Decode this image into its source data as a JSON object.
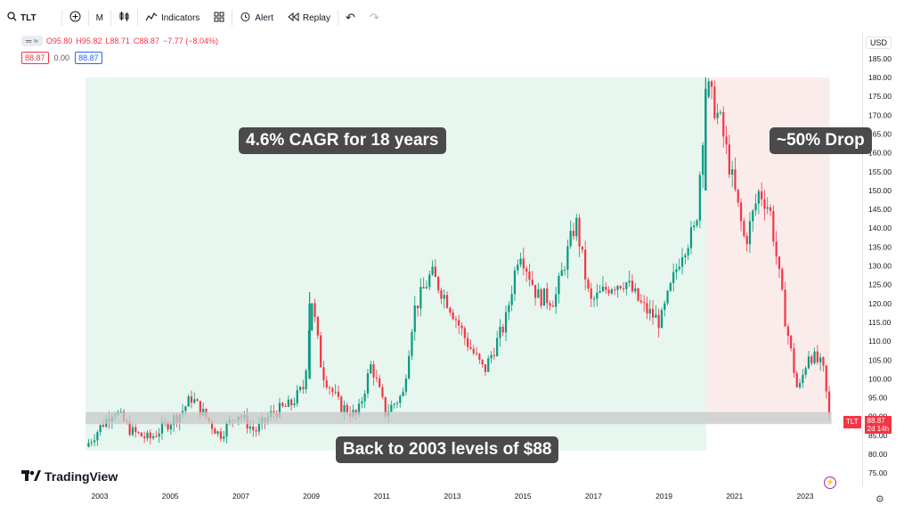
{
  "toolbar": {
    "symbol": "TLT",
    "interval": "M",
    "indicators": "Indicators",
    "alert": "Alert",
    "replay": "Replay"
  },
  "legend": {
    "open": "O95.80",
    "high": "H95.82",
    "low": "L88.71",
    "close": "C88.87",
    "change": "−7.77 (−8.04%)",
    "bid": "88.87",
    "spread": "0.00",
    "ask": "88.87"
  },
  "currency": "USD",
  "annotations": {
    "cagr": "4.6% CAGR for 18 years",
    "drop": "~50% Drop",
    "back": "Back to 2003 levels of $88"
  },
  "brand": "TradingView",
  "price_label": {
    "symbol": "TLT",
    "price": "88.87",
    "countdown": "2d 14h"
  },
  "colors": {
    "up": "#089981",
    "down": "#f23645",
    "green_zone": "#e7f6ee",
    "red_zone": "#fbecec",
    "band": "#c7cac9"
  },
  "chart_data": {
    "type": "candlestick",
    "x_ticks": [
      "2003",
      "2005",
      "2007",
      "2009",
      "2011",
      "2013",
      "2015",
      "2017",
      "2019",
      "2021",
      "2023"
    ],
    "y_ticks": [
      "75.00",
      "80.00",
      "85.00",
      "90.00",
      "95.00",
      "100.00",
      "105.00",
      "110.00",
      "115.00",
      "120.00",
      "125.00",
      "130.00",
      "135.00",
      "140.00",
      "145.00",
      "150.00",
      "155.00",
      "160.00",
      "165.00",
      "170.00",
      "175.00",
      "180.00",
      "185.00"
    ],
    "ylim": [
      72,
      188
    ],
    "xlim": [
      2002.5,
      2024.0
    ],
    "series": [
      {
        "year": 2002.6,
        "close": 82
      },
      {
        "year": 2003.0,
        "close": 87
      },
      {
        "year": 2003.4,
        "close": 92
      },
      {
        "year": 2003.9,
        "close": 86
      },
      {
        "year": 2004.4,
        "close": 84
      },
      {
        "year": 2004.9,
        "close": 88
      },
      {
        "year": 2005.3,
        "close": 91
      },
      {
        "year": 2005.6,
        "close": 95
      },
      {
        "year": 2006.0,
        "close": 90
      },
      {
        "year": 2006.4,
        "close": 85
      },
      {
        "year": 2006.9,
        "close": 91
      },
      {
        "year": 2007.4,
        "close": 86
      },
      {
        "year": 2007.9,
        "close": 91
      },
      {
        "year": 2008.4,
        "close": 93
      },
      {
        "year": 2008.8,
        "close": 98
      },
      {
        "year": 2009.0,
        "close": 122
      },
      {
        "year": 2009.3,
        "close": 102
      },
      {
        "year": 2009.8,
        "close": 93
      },
      {
        "year": 2010.3,
        "close": 90
      },
      {
        "year": 2010.7,
        "close": 104
      },
      {
        "year": 2011.1,
        "close": 91
      },
      {
        "year": 2011.6,
        "close": 96
      },
      {
        "year": 2011.9,
        "close": 118
      },
      {
        "year": 2012.4,
        "close": 128
      },
      {
        "year": 2012.9,
        "close": 120
      },
      {
        "year": 2013.4,
        "close": 110
      },
      {
        "year": 2013.9,
        "close": 102
      },
      {
        "year": 2014.5,
        "close": 115
      },
      {
        "year": 2014.9,
        "close": 135
      },
      {
        "year": 2015.4,
        "close": 122
      },
      {
        "year": 2015.9,
        "close": 121
      },
      {
        "year": 2016.5,
        "close": 142
      },
      {
        "year": 2016.9,
        "close": 120
      },
      {
        "year": 2017.5,
        "close": 125
      },
      {
        "year": 2017.9,
        "close": 126
      },
      {
        "year": 2018.4,
        "close": 119
      },
      {
        "year": 2018.9,
        "close": 115
      },
      {
        "year": 2019.5,
        "close": 134
      },
      {
        "year": 2019.9,
        "close": 140
      },
      {
        "year": 2020.2,
        "close": 178
      },
      {
        "year": 2020.6,
        "close": 168
      },
      {
        "year": 2021.0,
        "close": 150
      },
      {
        "year": 2021.3,
        "close": 136
      },
      {
        "year": 2021.7,
        "close": 150
      },
      {
        "year": 2022.0,
        "close": 145
      },
      {
        "year": 2022.4,
        "close": 118
      },
      {
        "year": 2022.8,
        "close": 96
      },
      {
        "year": 2023.1,
        "close": 107
      },
      {
        "year": 2023.5,
        "close": 103
      },
      {
        "year": 2023.7,
        "close": 89
      }
    ]
  }
}
